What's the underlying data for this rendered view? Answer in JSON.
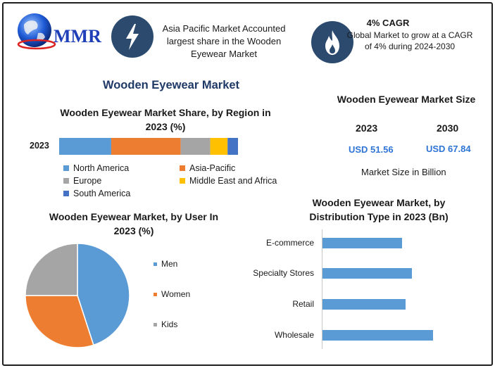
{
  "logo": {
    "text": "MMR"
  },
  "info_cards": [
    {
      "icon": "lightning-icon",
      "title": "",
      "text": "Asia Pacific Market Accounted largest share in the Wooden Eyewear Market"
    },
    {
      "icon": "flame-icon",
      "title": "4% CAGR",
      "text": "Global Market to grow at a CAGR of 4% during 2024-2030"
    }
  ],
  "main_title": "Wooden Eyewear Market",
  "market_size": {
    "title": "Wooden Eyewear Market Size",
    "years": [
      "2023",
      "2030"
    ],
    "values": [
      "USD 51.56",
      "USD 67.84"
    ],
    "unit_note": "Market Size in Billion"
  },
  "colors": {
    "north_america": "#5b9bd5",
    "asia_pacific": "#ed7d31",
    "europe": "#a5a5a5",
    "middle_east_africa": "#ffc000",
    "south_america": "#4472c4",
    "icon_bg": "#2b4a6e",
    "usd_blue": "#2e75d6"
  },
  "chart_data": [
    {
      "type": "bar",
      "orientation": "horizontal-stacked",
      "title": "Wooden Eyewear Market Share, by Region in 2023 (%)",
      "categories": [
        "2023"
      ],
      "series": [
        {
          "name": "North America",
          "values": [
            30
          ],
          "color": "#5b9bd5"
        },
        {
          "name": "Asia-Pacific",
          "values": [
            40
          ],
          "color": "#ed7d31"
        },
        {
          "name": "Europe",
          "values": [
            17
          ],
          "color": "#a5a5a5"
        },
        {
          "name": "Middle East and Africa",
          "values": [
            10
          ],
          "color": "#ffc000"
        },
        {
          "name": "South America",
          "values": [
            6
          ],
          "color": "#4472c4"
        }
      ],
      "legend_placement": "bottom"
    },
    {
      "type": "pie",
      "title": "Wooden Eyewear Market, by User In 2023 (%)",
      "labels": [
        "Men",
        "Women",
        "Kids"
      ],
      "values": [
        45,
        30,
        25
      ],
      "colors": [
        "#5b9bd5",
        "#ed7d31",
        "#a5a5a5"
      ],
      "legend_placement": "right"
    },
    {
      "type": "bar",
      "orientation": "horizontal",
      "title": "Wooden Eyewear Market, by Distribution Type in 2023 (Bn)",
      "categories": [
        "E-commerce",
        "Specialty Stores",
        "Retail",
        "Wholesale"
      ],
      "values": [
        11.5,
        13,
        12,
        16
      ],
      "xlim": [
        0,
        20
      ],
      "color": "#5b9bd5"
    }
  ]
}
